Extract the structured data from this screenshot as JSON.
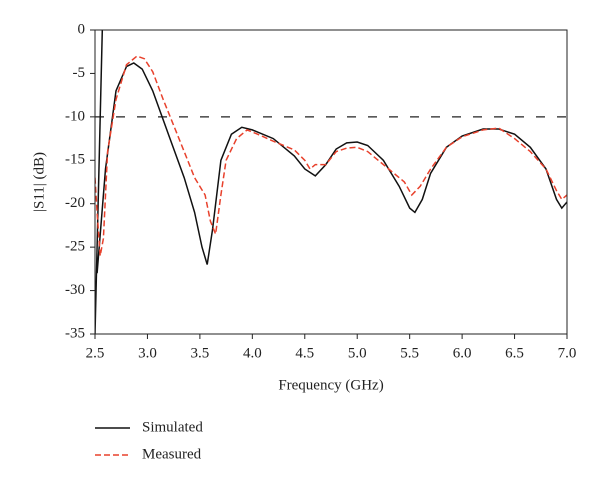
{
  "chart_data": {
    "type": "line",
    "xlabel": "Frequency (GHz)",
    "ylabel": "|S11| (dB)",
    "xlim": [
      2.5,
      7.0
    ],
    "ylim": [
      -35,
      0
    ],
    "xticks": [
      2.5,
      {
        "value": 3,
        "label": "3.0"
      },
      3.5,
      {
        "value": 4,
        "label": "4.0"
      },
      4.5,
      {
        "value": 5,
        "label": "5.0"
      },
      5.5,
      {
        "value": 6,
        "label": "6.0"
      },
      6.5,
      {
        "value": 7,
        "label": "7.0"
      }
    ],
    "yticks": [
      0,
      -5,
      -10,
      -15,
      -20,
      -25,
      -30,
      -35
    ],
    "reference_line": -10,
    "series": [
      {
        "name": "Simulated",
        "color": "#111111",
        "dash": "none",
        "x": [
          2.5,
          2.57,
          2.57,
          2.52,
          2.6,
          2.7,
          2.8,
          2.87,
          2.95,
          3.05,
          3.2,
          3.35,
          3.45,
          3.52,
          3.57,
          3.62,
          3.7,
          3.8,
          3.9,
          4.0,
          4.2,
          4.4,
          4.5,
          4.6,
          4.7,
          4.8,
          4.9,
          5.0,
          5.1,
          5.25,
          5.4,
          5.5,
          5.55,
          5.62,
          5.7,
          5.85,
          6.0,
          6.2,
          6.35,
          6.5,
          6.65,
          6.8,
          6.9,
          6.95,
          7.0
        ],
        "values": [
          -35,
          0,
          null,
          -28,
          -16,
          -7,
          -4.2,
          -3.8,
          -4.5,
          -7,
          -12,
          -17,
          -21,
          -25,
          -27,
          -23,
          -15,
          -12,
          -11.2,
          -11.5,
          -12.5,
          -14.5,
          -16,
          -16.8,
          -15.5,
          -13.7,
          -13,
          -12.9,
          -13.3,
          -15,
          -18,
          -20.5,
          -21,
          -19.5,
          -16.5,
          -13.5,
          -12.2,
          -11.4,
          -11.4,
          -12,
          -13.5,
          -16,
          -19.5,
          -20.5,
          -19.8
        ]
      },
      {
        "name": "Measured",
        "color": "#e8412c",
        "dash": "6,3",
        "x": [
          2.5,
          2.52,
          2.55,
          2.58,
          2.62,
          2.7,
          2.8,
          2.9,
          2.97,
          3.05,
          3.15,
          3.25,
          3.35,
          3.45,
          3.55,
          3.6,
          3.65,
          3.7,
          3.75,
          3.85,
          3.95,
          4.05,
          4.2,
          4.4,
          4.5,
          4.55,
          4.6,
          4.7,
          4.8,
          4.9,
          5.0,
          5.1,
          5.2,
          5.3,
          5.45,
          5.52,
          5.6,
          5.7,
          5.85,
          6.0,
          6.2,
          6.35,
          6.5,
          6.65,
          6.8,
          6.9,
          6.95,
          7.0
        ],
        "values": [
          -17,
          -21,
          -26,
          -24,
          -14,
          -8,
          -4,
          -3,
          -3.3,
          -4.8,
          -8,
          -11,
          -14,
          -17,
          -19,
          -22,
          -23.5,
          -19,
          -15,
          -12.5,
          -11.5,
          -12,
          -12.8,
          -13.8,
          -15,
          -16,
          -15.5,
          -15.5,
          -14,
          -13.6,
          -13.5,
          -14,
          -15,
          -16,
          -17.5,
          -19,
          -18,
          -16,
          -13.5,
          -12.3,
          -11.5,
          -11.3,
          -12.5,
          -14,
          -16,
          -18.5,
          -19.5,
          -19
        ]
      }
    ]
  }
}
